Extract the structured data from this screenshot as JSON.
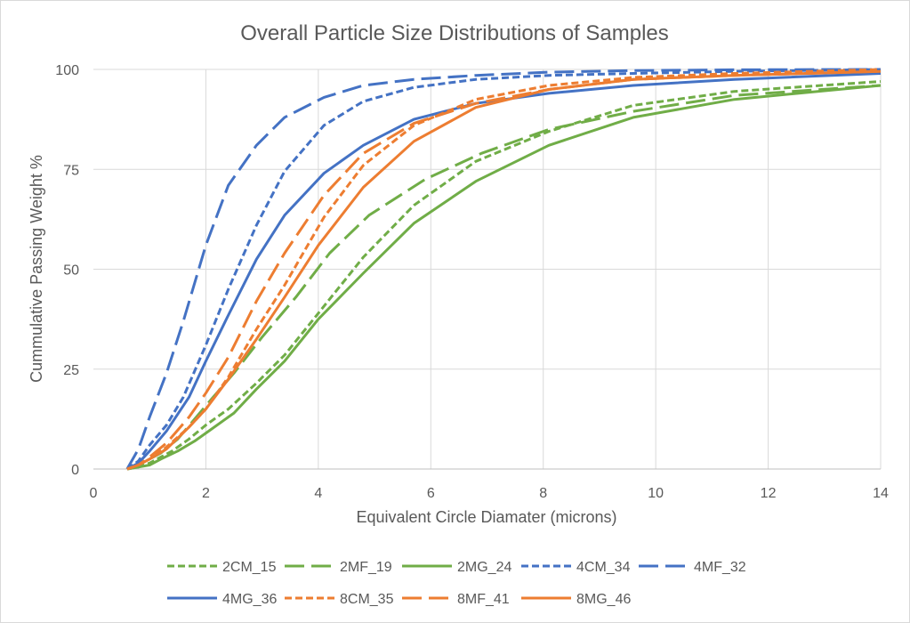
{
  "chart_data": {
    "type": "line",
    "title": "Overall Particle Size Distributions of Samples",
    "xlabel": "Equivalent Circle Diamater (microns)",
    "ylabel": "Cummulative Passing Weight %",
    "xlim": [
      0,
      14
    ],
    "ylim": [
      0,
      100
    ],
    "x_ticks": [
      "0",
      "2",
      "4",
      "6",
      "8",
      "10",
      "12",
      "14"
    ],
    "y_ticks": [
      "0",
      "25",
      "50",
      "75",
      "100"
    ],
    "grid": true,
    "legend_position": "bottom",
    "series": [
      {
        "name": "2CM_15",
        "color": "#70AD47",
        "dash": "short-dash",
        "points": [
          [
            0.6,
            0
          ],
          [
            0.8,
            0.5
          ],
          [
            1.0,
            1.5
          ],
          [
            1.2,
            3
          ],
          [
            1.4,
            4.5
          ],
          [
            1.7,
            7.5
          ],
          [
            2.0,
            11
          ],
          [
            2.4,
            15
          ],
          [
            2.9,
            21.5
          ],
          [
            3.4,
            28.5
          ],
          [
            4.0,
            39
          ],
          [
            4.8,
            53
          ],
          [
            5.7,
            66
          ],
          [
            6.8,
            77
          ],
          [
            8.1,
            84.5
          ],
          [
            9.6,
            91
          ],
          [
            11.4,
            94.5
          ],
          [
            14,
            97
          ]
        ]
      },
      {
        "name": "2MF_19",
        "color": "#70AD47",
        "dash": "long-dash",
        "points": [
          [
            0.6,
            0
          ],
          [
            0.8,
            1
          ],
          [
            1.0,
            2.5
          ],
          [
            1.2,
            4
          ],
          [
            1.5,
            7.5
          ],
          [
            1.8,
            12.5
          ],
          [
            2.1,
            17.5
          ],
          [
            2.5,
            24
          ],
          [
            3.0,
            33
          ],
          [
            3.6,
            43
          ],
          [
            4.2,
            54
          ],
          [
            4.9,
            63.5
          ],
          [
            5.9,
            72.5
          ],
          [
            6.9,
            79
          ],
          [
            8.1,
            85
          ],
          [
            9.6,
            89.5
          ],
          [
            11.4,
            93.5
          ],
          [
            14,
            96
          ]
        ]
      },
      {
        "name": "2MG_24",
        "color": "#70AD47",
        "dash": "solid",
        "points": [
          [
            0.6,
            0
          ],
          [
            0.8,
            0.5
          ],
          [
            1.0,
            1
          ],
          [
            1.2,
            2.5
          ],
          [
            1.5,
            4.5
          ],
          [
            1.8,
            7
          ],
          [
            2.1,
            10
          ],
          [
            2.5,
            14
          ],
          [
            2.9,
            20
          ],
          [
            3.4,
            27
          ],
          [
            4.0,
            37.5
          ],
          [
            4.8,
            49
          ],
          [
            5.7,
            61.5
          ],
          [
            6.8,
            72
          ],
          [
            8.1,
            81
          ],
          [
            9.6,
            88
          ],
          [
            11.4,
            92.5
          ],
          [
            14,
            96
          ]
        ]
      },
      {
        "name": "4CM_34",
        "color": "#4472C4",
        "dash": "short-dash",
        "points": [
          [
            0.6,
            0
          ],
          [
            0.8,
            2
          ],
          [
            1.0,
            6
          ],
          [
            1.3,
            11
          ],
          [
            1.6,
            18
          ],
          [
            2.0,
            31
          ],
          [
            2.4,
            45
          ],
          [
            2.9,
            61
          ],
          [
            3.4,
            74.5
          ],
          [
            4.1,
            86
          ],
          [
            4.8,
            92
          ],
          [
            5.7,
            95.5
          ],
          [
            6.8,
            97.5
          ],
          [
            8.1,
            98.5
          ],
          [
            9.6,
            99
          ],
          [
            11.4,
            99.5
          ],
          [
            14,
            100
          ]
        ]
      },
      {
        "name": "4MF_32",
        "color": "#4472C4",
        "dash": "long-dash",
        "points": [
          [
            0.6,
            0
          ],
          [
            0.8,
            5
          ],
          [
            1.0,
            13
          ],
          [
            1.3,
            24
          ],
          [
            1.6,
            37
          ],
          [
            2.0,
            56
          ],
          [
            2.4,
            71
          ],
          [
            2.9,
            81
          ],
          [
            3.4,
            88
          ],
          [
            4.1,
            93
          ],
          [
            4.8,
            96
          ],
          [
            5.7,
            97.5
          ],
          [
            6.8,
            98.5
          ],
          [
            8.1,
            99.3
          ],
          [
            9.6,
            99.7
          ],
          [
            11.4,
            99.9
          ],
          [
            14,
            100
          ]
        ]
      },
      {
        "name": "4MG_36",
        "color": "#4472C4",
        "dash": "solid",
        "points": [
          [
            0.6,
            0
          ],
          [
            0.8,
            1.5
          ],
          [
            1.0,
            4.5
          ],
          [
            1.3,
            9.5
          ],
          [
            1.7,
            18
          ],
          [
            2.0,
            27
          ],
          [
            2.4,
            38.5
          ],
          [
            2.9,
            52.5
          ],
          [
            3.4,
            63.5
          ],
          [
            4.1,
            74
          ],
          [
            4.8,
            81
          ],
          [
            5.7,
            87.5
          ],
          [
            6.8,
            91.5
          ],
          [
            8.1,
            94
          ],
          [
            9.6,
            96
          ],
          [
            11.4,
            97.5
          ],
          [
            14,
            99
          ]
        ]
      },
      {
        "name": "8CM_35",
        "color": "#ED7D31",
        "dash": "short-dash",
        "points": [
          [
            0.6,
            0
          ],
          [
            0.8,
            1
          ],
          [
            1.0,
            2.5
          ],
          [
            1.3,
            5.5
          ],
          [
            1.7,
            10.5
          ],
          [
            2.0,
            15
          ],
          [
            2.4,
            23
          ],
          [
            2.9,
            35
          ],
          [
            3.4,
            46
          ],
          [
            4.1,
            63
          ],
          [
            4.8,
            76
          ],
          [
            5.7,
            86
          ],
          [
            6.8,
            92.5
          ],
          [
            8.1,
            96
          ],
          [
            9.6,
            98
          ],
          [
            11.4,
            99
          ],
          [
            14,
            100
          ]
        ]
      },
      {
        "name": "8MF_41",
        "color": "#ED7D31",
        "dash": "long-dash",
        "points": [
          [
            0.6,
            0
          ],
          [
            0.8,
            1
          ],
          [
            1.0,
            3
          ],
          [
            1.3,
            6.5
          ],
          [
            1.7,
            13
          ],
          [
            2.0,
            19
          ],
          [
            2.4,
            28
          ],
          [
            2.9,
            42
          ],
          [
            3.4,
            54
          ],
          [
            4.1,
            68.5
          ],
          [
            4.8,
            79
          ],
          [
            5.7,
            86.5
          ],
          [
            6.8,
            91.5
          ],
          [
            8.1,
            95
          ],
          [
            9.6,
            97.5
          ],
          [
            11.4,
            98.5
          ],
          [
            14,
            99.5
          ]
        ]
      },
      {
        "name": "8MG_46",
        "color": "#ED7D31",
        "dash": "solid",
        "points": [
          [
            0.6,
            0
          ],
          [
            0.8,
            1
          ],
          [
            1.0,
            2.5
          ],
          [
            1.3,
            5
          ],
          [
            1.7,
            10.5
          ],
          [
            2.0,
            15
          ],
          [
            2.4,
            22.5
          ],
          [
            2.9,
            32.5
          ],
          [
            3.4,
            43
          ],
          [
            4.0,
            56
          ],
          [
            4.8,
            70.5
          ],
          [
            5.7,
            82
          ],
          [
            6.8,
            90.5
          ],
          [
            8.1,
            95
          ],
          [
            9.6,
            97.5
          ],
          [
            11.4,
            98.5
          ],
          [
            14,
            99.5
          ]
        ]
      }
    ]
  }
}
